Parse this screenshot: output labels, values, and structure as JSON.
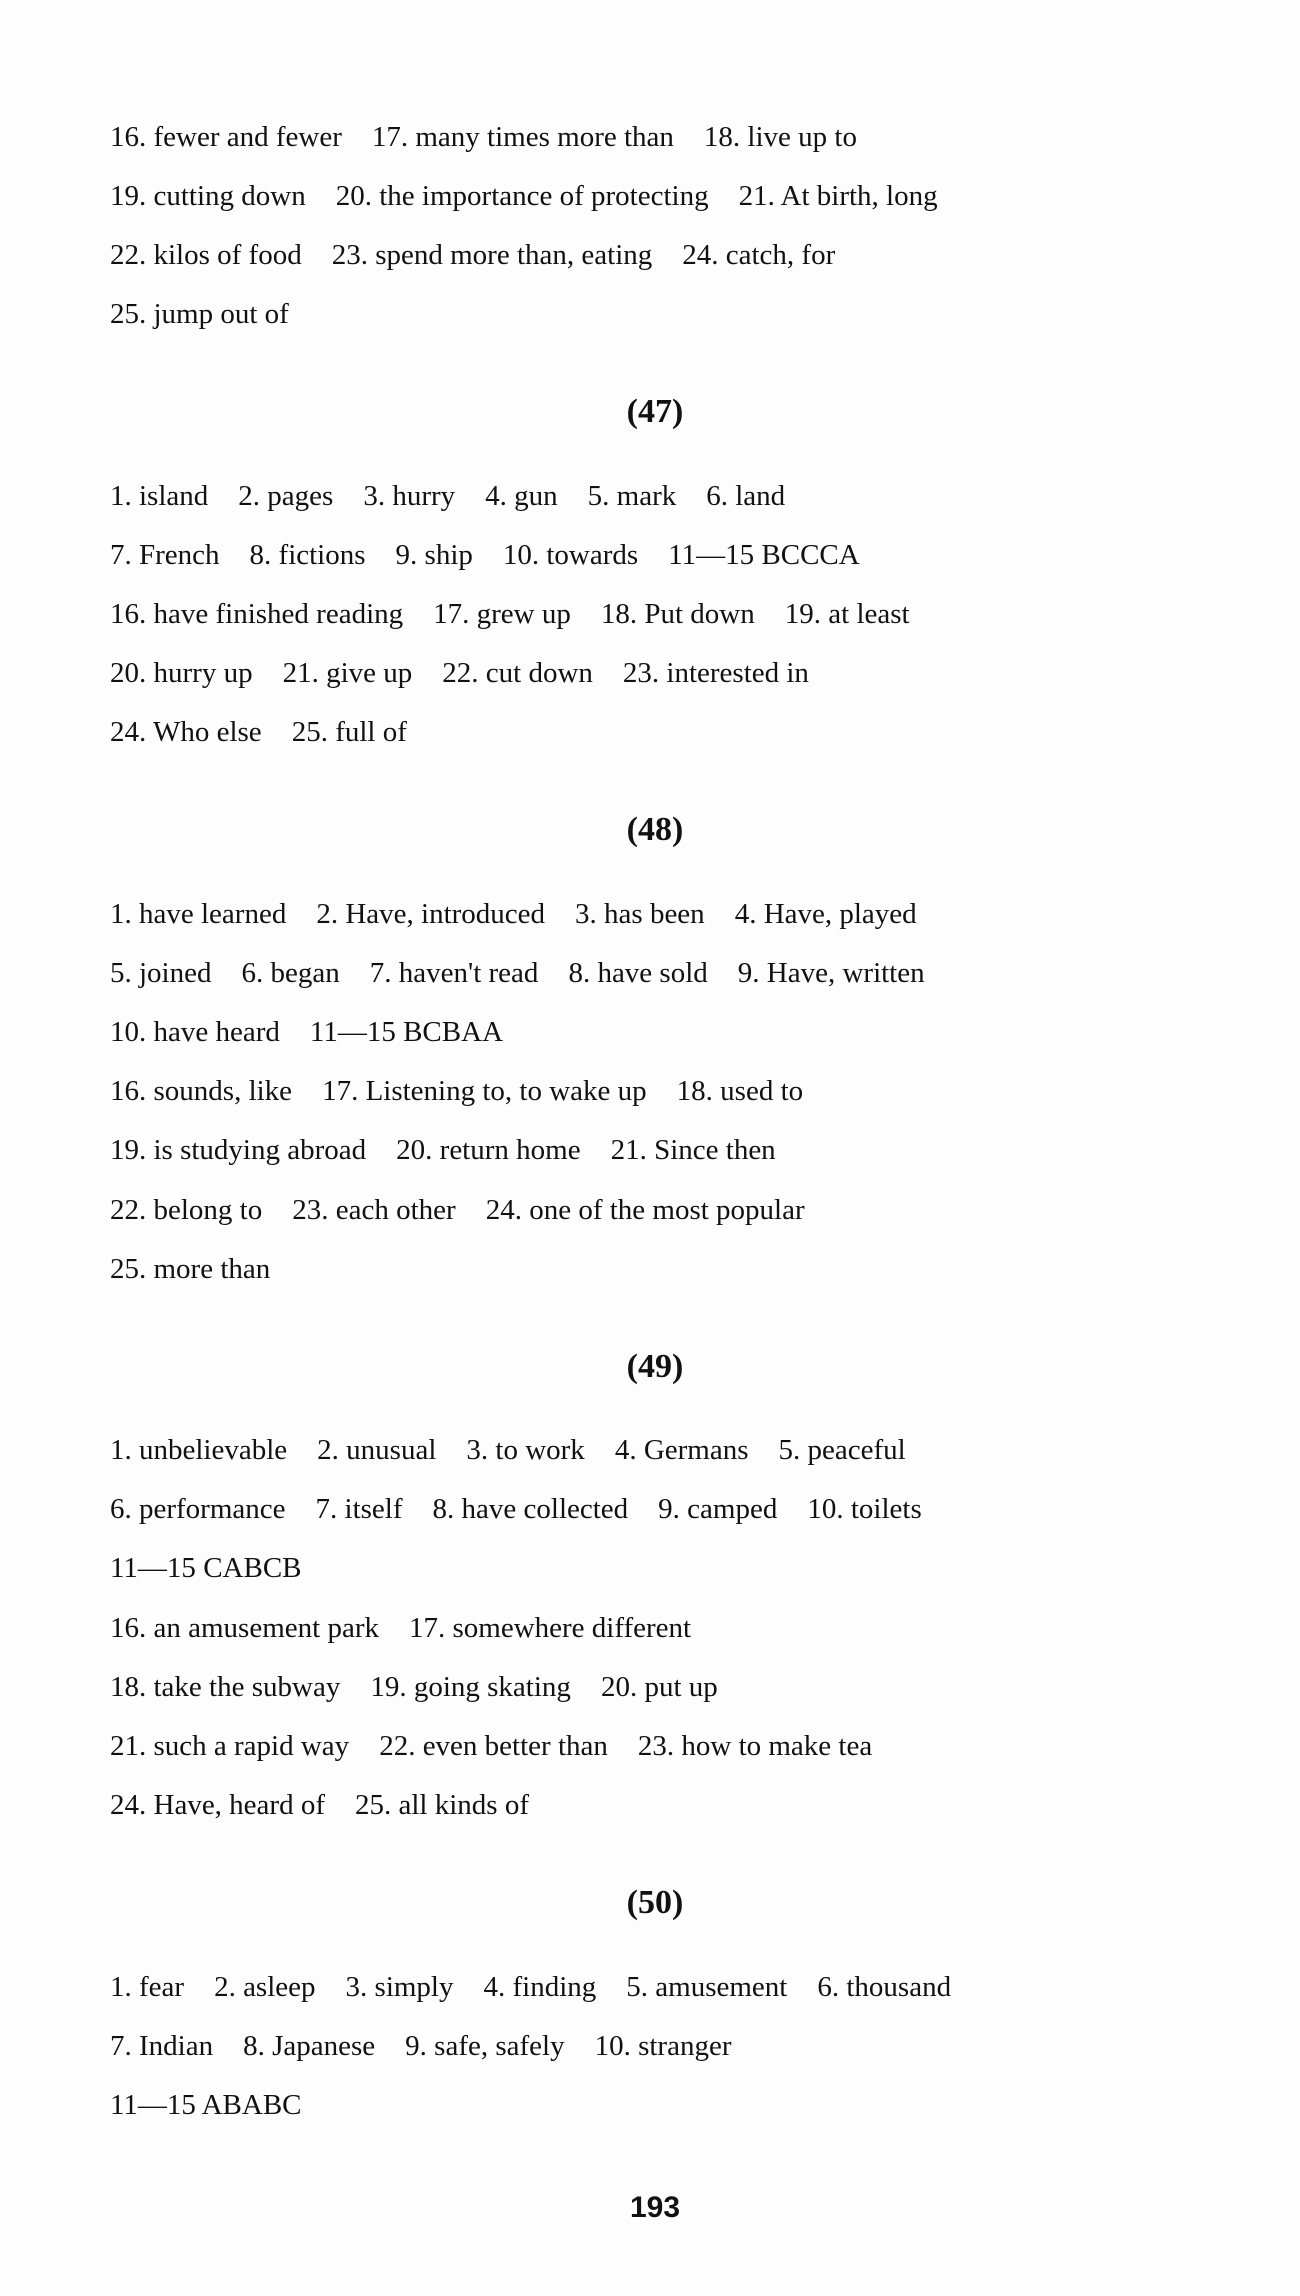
{
  "page_number": "193",
  "font": {
    "family_serif": "Times New Roman",
    "size_body_pt": 22,
    "size_heading_pt": 26,
    "size_footer_pt": 22
  },
  "colors": {
    "background": "#fdfdfd",
    "text": "#111111"
  },
  "sections": [
    {
      "heading": null,
      "rows": [
        [
          {
            "n": "16.",
            "t": "fewer and fewer"
          },
          {
            "n": "17.",
            "t": "many times more than"
          },
          {
            "n": "18.",
            "t": "live up to"
          }
        ],
        [
          {
            "n": "19.",
            "t": "cutting down"
          },
          {
            "n": "20.",
            "t": "the importance of protecting"
          },
          {
            "n": "21.",
            "t": "At birth, long"
          }
        ],
        [
          {
            "n": "22.",
            "t": "kilos of food"
          },
          {
            "n": "23.",
            "t": "spend more than, eating"
          },
          {
            "n": "24.",
            "t": "catch, for"
          }
        ],
        [
          {
            "n": "25.",
            "t": "jump out of"
          }
        ]
      ]
    },
    {
      "heading": "(47)",
      "rows": [
        [
          {
            "n": "1.",
            "t": "island"
          },
          {
            "n": "2.",
            "t": "pages"
          },
          {
            "n": "3.",
            "t": "hurry"
          },
          {
            "n": "4.",
            "t": "gun"
          },
          {
            "n": "5.",
            "t": "mark"
          },
          {
            "n": "6.",
            "t": "land"
          }
        ],
        [
          {
            "n": "7.",
            "t": "French"
          },
          {
            "n": "8.",
            "t": "fictions"
          },
          {
            "n": "9.",
            "t": "ship"
          },
          {
            "n": "10.",
            "t": "towards"
          },
          {
            "n": "11—15",
            "t": "BCCCA"
          }
        ],
        [
          {
            "n": "16.",
            "t": "have finished reading"
          },
          {
            "n": "17.",
            "t": "grew up"
          },
          {
            "n": "18.",
            "t": "Put down"
          },
          {
            "n": "19.",
            "t": "at least"
          }
        ],
        [
          {
            "n": "20.",
            "t": "hurry up"
          },
          {
            "n": "21.",
            "t": "give up"
          },
          {
            "n": "22.",
            "t": "cut down"
          },
          {
            "n": "23.",
            "t": "interested in"
          }
        ],
        [
          {
            "n": "24.",
            "t": "Who else"
          },
          {
            "n": "25.",
            "t": "full of"
          }
        ]
      ]
    },
    {
      "heading": "(48)",
      "rows": [
        [
          {
            "n": "1.",
            "t": "have learned"
          },
          {
            "n": "2.",
            "t": "Have, introduced"
          },
          {
            "n": "3.",
            "t": "has been"
          },
          {
            "n": "4.",
            "t": "Have, played"
          }
        ],
        [
          {
            "n": "5.",
            "t": "joined"
          },
          {
            "n": "6.",
            "t": "began"
          },
          {
            "n": "7.",
            "t": "haven't read"
          },
          {
            "n": "8.",
            "t": "have sold"
          },
          {
            "n": "9.",
            "t": "Have, written"
          }
        ],
        [
          {
            "n": "10.",
            "t": "have heard"
          },
          {
            "n": "11—15",
            "t": "BCBAA"
          }
        ],
        [
          {
            "n": "16.",
            "t": "sounds, like"
          },
          {
            "n": "17.",
            "t": "Listening to, to wake up"
          },
          {
            "n": "18.",
            "t": "used to"
          }
        ],
        [
          {
            "n": "19.",
            "t": "is studying abroad"
          },
          {
            "n": "20.",
            "t": "return home"
          },
          {
            "n": "21.",
            "t": "Since then"
          }
        ],
        [
          {
            "n": "22.",
            "t": "belong to"
          },
          {
            "n": "23.",
            "t": "each other"
          },
          {
            "n": "24.",
            "t": "one of the most popular"
          }
        ],
        [
          {
            "n": "25.",
            "t": "more than"
          }
        ]
      ]
    },
    {
      "heading": "(49)",
      "rows": [
        [
          {
            "n": "1.",
            "t": "unbelievable"
          },
          {
            "n": "2.",
            "t": "unusual"
          },
          {
            "n": "3.",
            "t": "to work"
          },
          {
            "n": "4.",
            "t": "Germans"
          },
          {
            "n": "5.",
            "t": "peaceful"
          }
        ],
        [
          {
            "n": "6.",
            "t": "performance"
          },
          {
            "n": "7.",
            "t": "itself"
          },
          {
            "n": "8.",
            "t": "have collected"
          },
          {
            "n": "9.",
            "t": "camped"
          },
          {
            "n": "10.",
            "t": "toilets"
          }
        ],
        [
          {
            "n": "11—15",
            "t": "CABCB"
          }
        ],
        [
          {
            "n": "16.",
            "t": "an amusement park"
          },
          {
            "n": "17.",
            "t": "somewhere different"
          }
        ],
        [
          {
            "n": "18.",
            "t": "take the subway"
          },
          {
            "n": "19.",
            "t": "going skating"
          },
          {
            "n": "20.",
            "t": "put up"
          }
        ],
        [
          {
            "n": "21.",
            "t": "such a rapid way"
          },
          {
            "n": "22.",
            "t": "even better than"
          },
          {
            "n": "23.",
            "t": "how to make tea"
          }
        ],
        [
          {
            "n": "24.",
            "t": "Have, heard of"
          },
          {
            "n": "25.",
            "t": "all kinds of"
          }
        ]
      ]
    },
    {
      "heading": "(50)",
      "rows": [
        [
          {
            "n": "1.",
            "t": "fear"
          },
          {
            "n": "2.",
            "t": "asleep"
          },
          {
            "n": "3.",
            "t": "simply"
          },
          {
            "n": "4.",
            "t": "finding"
          },
          {
            "n": "5.",
            "t": "amusement"
          },
          {
            "n": "6.",
            "t": "thousand"
          }
        ],
        [
          {
            "n": "7.",
            "t": "Indian"
          },
          {
            "n": "8.",
            "t": "Japanese"
          },
          {
            "n": "9.",
            "t": "safe, safely"
          },
          {
            "n": "10.",
            "t": "stranger"
          }
        ],
        [
          {
            "n": "11—15",
            "t": "ABABC"
          }
        ]
      ]
    }
  ]
}
